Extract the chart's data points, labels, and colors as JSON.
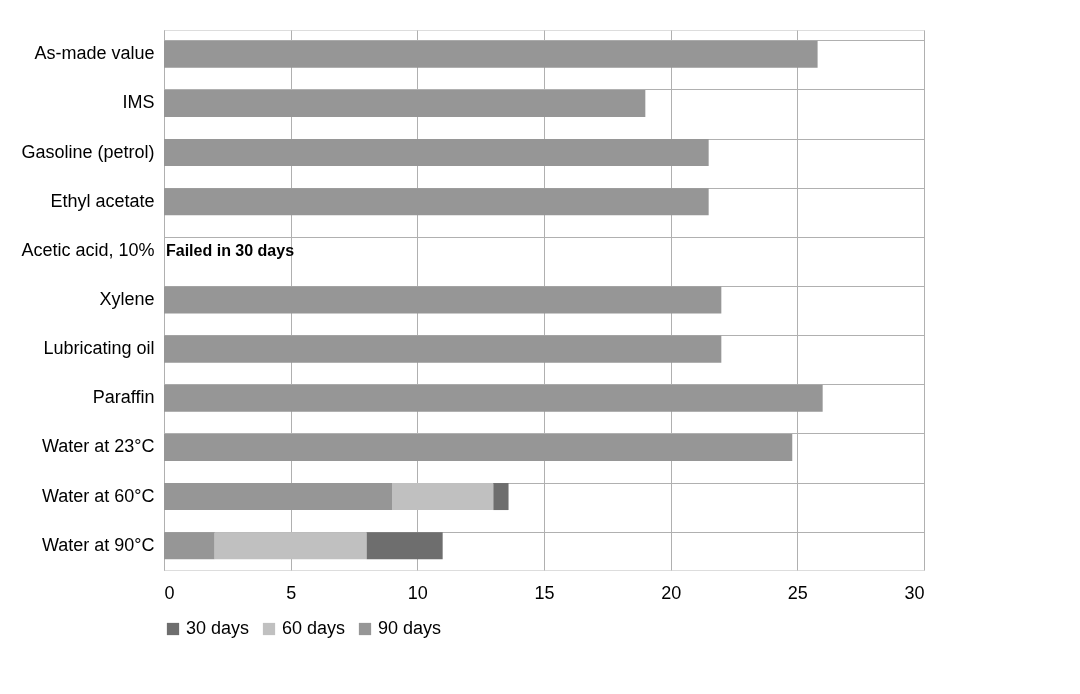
{
  "chart_data": {
    "type": "bar",
    "orientation": "horizontal",
    "stacked": true,
    "categories": [
      "As-made value",
      "IMS",
      "Gasoline (petrol)",
      "Ethyl acetate",
      "Acetic acid, 10%",
      "Xylene",
      "Lubricating oil",
      "Paraffin",
      "Water at 23°C",
      "Water at 60°C",
      "Water at 90°C"
    ],
    "series": [
      {
        "name": "90 days",
        "color": "#969696",
        "values": [
          25.8,
          19,
          21.5,
          21.5,
          null,
          22,
          22,
          26,
          24.8,
          9,
          2
        ]
      },
      {
        "name": "60 days",
        "color": "#c0c0c0",
        "values": [
          null,
          null,
          null,
          null,
          null,
          null,
          null,
          null,
          null,
          4,
          6
        ]
      },
      {
        "name": "30 days",
        "color": "#6e6e6e",
        "values": [
          null,
          null,
          null,
          null,
          null,
          null,
          null,
          null,
          null,
          0.6,
          3
        ]
      }
    ],
    "xlim": [
      0,
      30
    ],
    "xticks": [
      0,
      5,
      10,
      15,
      20,
      25,
      30
    ],
    "annotations": [
      "Failed in 30 days"
    ],
    "grid": true,
    "legend": "bottom"
  }
}
